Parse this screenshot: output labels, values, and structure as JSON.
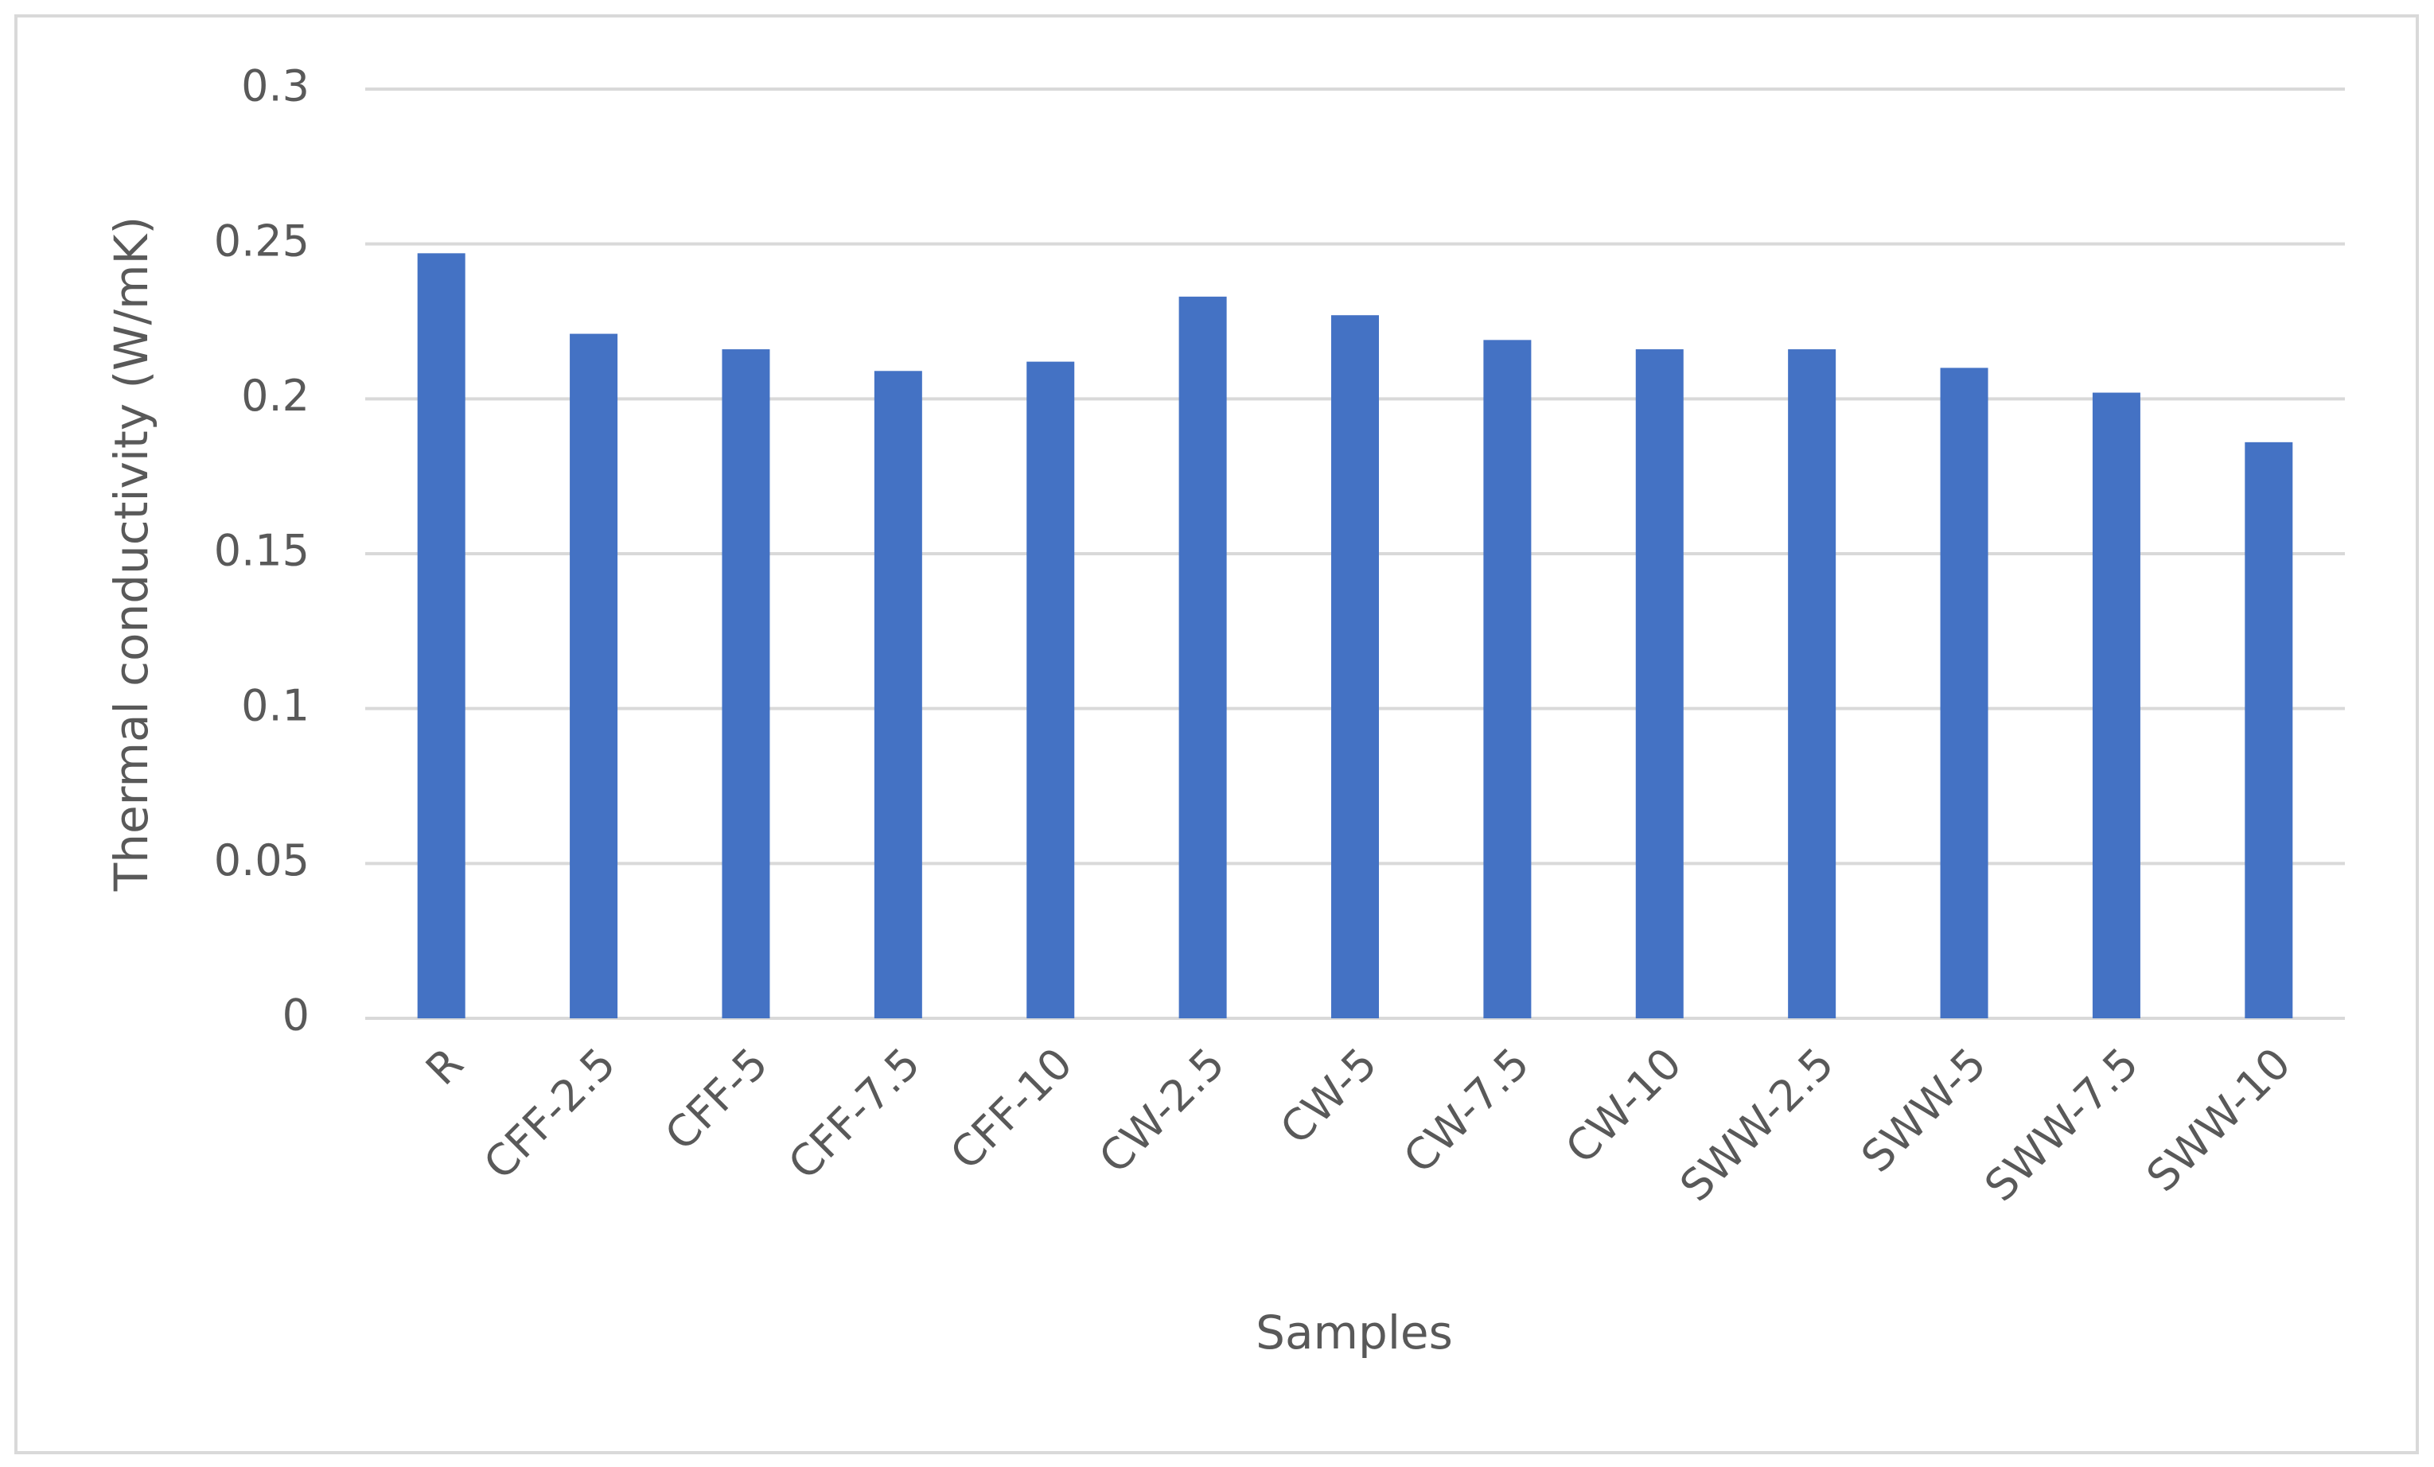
{
  "chart_data": {
    "type": "bar",
    "x_label": "Samples",
    "y_label": "Thermal conductivity (W/mK)",
    "categories": [
      "R",
      "CFF-2.5",
      "CFF-5",
      "CFF-7.5",
      "CFF-10",
      "CW-2.5",
      "CW-5",
      "CW-7.5",
      "CW-10",
      "SWW-2.5",
      "SWW-5",
      "SWW-7.5",
      "SWW-10"
    ],
    "values": [
      0.247,
      0.221,
      0.216,
      0.209,
      0.212,
      0.233,
      0.227,
      0.219,
      0.216,
      0.216,
      0.21,
      0.202,
      0.186
    ],
    "color": "#4472c4",
    "ylim": [
      0,
      0.3
    ],
    "yticks": [
      0,
      0.05,
      0.1,
      0.15,
      0.2,
      0.25,
      0.3
    ],
    "grid": true
  }
}
